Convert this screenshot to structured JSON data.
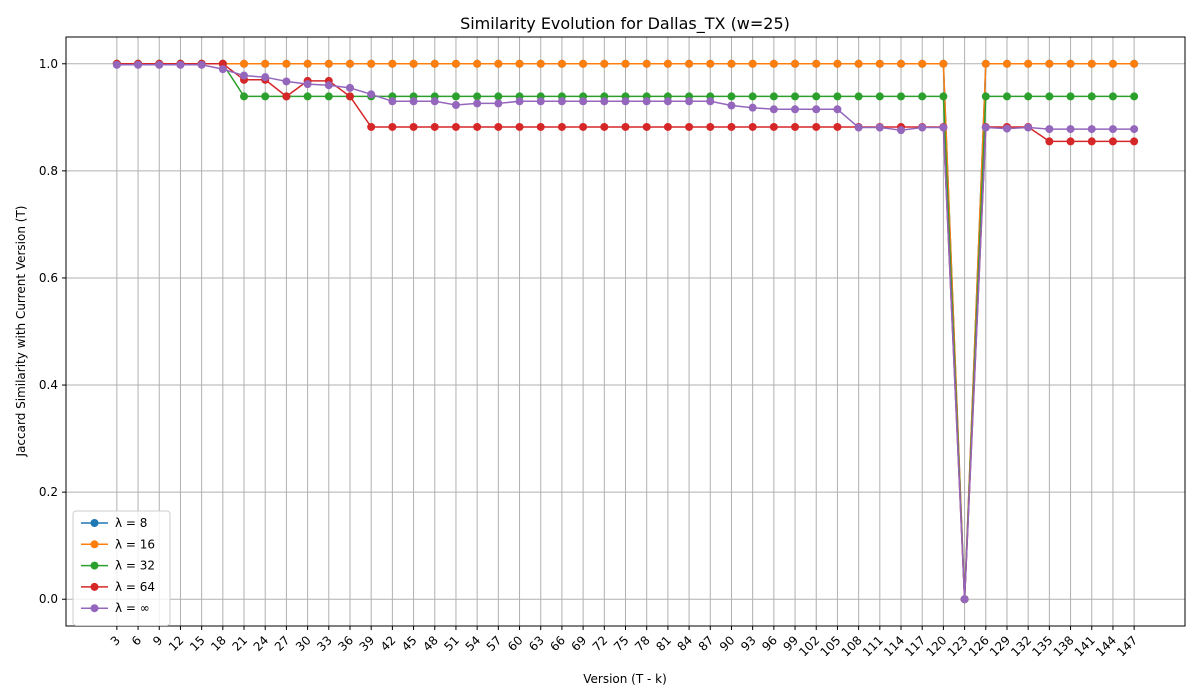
{
  "chart_data": {
    "type": "line",
    "title": "Similarity Evolution for Dallas_TX (w=25)",
    "xlabel": "Version (T - k)",
    "ylabel": "Jaccard Similarity with Current Version (T)",
    "ylim": [
      -0.05,
      1.05
    ],
    "yticks": [
      0.0,
      0.2,
      0.4,
      0.6,
      0.8,
      1.0
    ],
    "ytick_labels": [
      "0.0",
      "0.2",
      "0.4",
      "0.6",
      "0.8",
      "1.0"
    ],
    "grid": true,
    "legend_position": "lower-left",
    "x": [
      3,
      6,
      9,
      12,
      15,
      18,
      21,
      24,
      27,
      30,
      33,
      36,
      39,
      42,
      45,
      48,
      51,
      54,
      57,
      60,
      63,
      66,
      69,
      72,
      75,
      78,
      81,
      84,
      87,
      90,
      93,
      96,
      99,
      102,
      105,
      108,
      111,
      114,
      117,
      120,
      123,
      126,
      129,
      132,
      135,
      138,
      141,
      144,
      147
    ],
    "series": [
      {
        "name": "λ = 8",
        "color": "#1f77b4",
        "values": [
          1.0,
          1.0,
          1.0,
          1.0,
          1.0,
          1.0,
          1.0,
          1.0,
          1.0,
          1.0,
          1.0,
          1.0,
          1.0,
          1.0,
          1.0,
          1.0,
          1.0,
          1.0,
          1.0,
          1.0,
          1.0,
          1.0,
          1.0,
          1.0,
          1.0,
          1.0,
          1.0,
          1.0,
          1.0,
          1.0,
          1.0,
          1.0,
          1.0,
          1.0,
          1.0,
          1.0,
          1.0,
          1.0,
          1.0,
          1.0,
          0.0,
          1.0,
          1.0,
          1.0,
          1.0,
          1.0,
          1.0,
          1.0,
          1.0
        ]
      },
      {
        "name": "λ = 16",
        "color": "#ff7f0e",
        "values": [
          1.0,
          1.0,
          1.0,
          1.0,
          1.0,
          1.0,
          1.0,
          1.0,
          1.0,
          1.0,
          1.0,
          1.0,
          1.0,
          1.0,
          1.0,
          1.0,
          1.0,
          1.0,
          1.0,
          1.0,
          1.0,
          1.0,
          1.0,
          1.0,
          1.0,
          1.0,
          1.0,
          1.0,
          1.0,
          1.0,
          1.0,
          1.0,
          1.0,
          1.0,
          1.0,
          1.0,
          1.0,
          1.0,
          1.0,
          1.0,
          0.0,
          1.0,
          1.0,
          1.0,
          1.0,
          1.0,
          1.0,
          1.0,
          1.0
        ]
      },
      {
        "name": "λ = 32",
        "color": "#2ca02c",
        "values": [
          1.0,
          1.0,
          1.0,
          1.0,
          1.0,
          1.0,
          0.939,
          0.939,
          0.939,
          0.939,
          0.939,
          0.939,
          0.939,
          0.939,
          0.939,
          0.939,
          0.939,
          0.939,
          0.939,
          0.939,
          0.939,
          0.939,
          0.939,
          0.939,
          0.939,
          0.939,
          0.939,
          0.939,
          0.939,
          0.939,
          0.939,
          0.939,
          0.939,
          0.939,
          0.939,
          0.939,
          0.939,
          0.939,
          0.939,
          0.939,
          0.0,
          0.939,
          0.939,
          0.939,
          0.939,
          0.939,
          0.939,
          0.939,
          0.939
        ]
      },
      {
        "name": "λ = 64",
        "color": "#d62728",
        "values": [
          1.0,
          1.0,
          1.0,
          1.0,
          1.0,
          1.0,
          0.97,
          0.97,
          0.939,
          0.968,
          0.968,
          0.939,
          0.882,
          0.882,
          0.882,
          0.882,
          0.882,
          0.882,
          0.882,
          0.882,
          0.882,
          0.882,
          0.882,
          0.882,
          0.882,
          0.882,
          0.882,
          0.882,
          0.882,
          0.882,
          0.882,
          0.882,
          0.882,
          0.882,
          0.882,
          0.882,
          0.882,
          0.882,
          0.882,
          0.882,
          0.0,
          0.882,
          0.882,
          0.882,
          0.855,
          0.855,
          0.855,
          0.855,
          0.855
        ]
      },
      {
        "name": "λ = ∞",
        "color": "#9467bd",
        "values": [
          0.998,
          0.998,
          0.998,
          0.998,
          0.998,
          0.99,
          0.978,
          0.975,
          0.967,
          0.962,
          0.96,
          0.955,
          0.943,
          0.93,
          0.93,
          0.93,
          0.923,
          0.926,
          0.926,
          0.93,
          0.93,
          0.93,
          0.93,
          0.93,
          0.93,
          0.93,
          0.93,
          0.93,
          0.93,
          0.922,
          0.918,
          0.915,
          0.915,
          0.915,
          0.915,
          0.881,
          0.881,
          0.876,
          0.881,
          0.881,
          0.0,
          0.881,
          0.879,
          0.881,
          0.878,
          0.878,
          0.878,
          0.878,
          0.878
        ]
      }
    ]
  }
}
